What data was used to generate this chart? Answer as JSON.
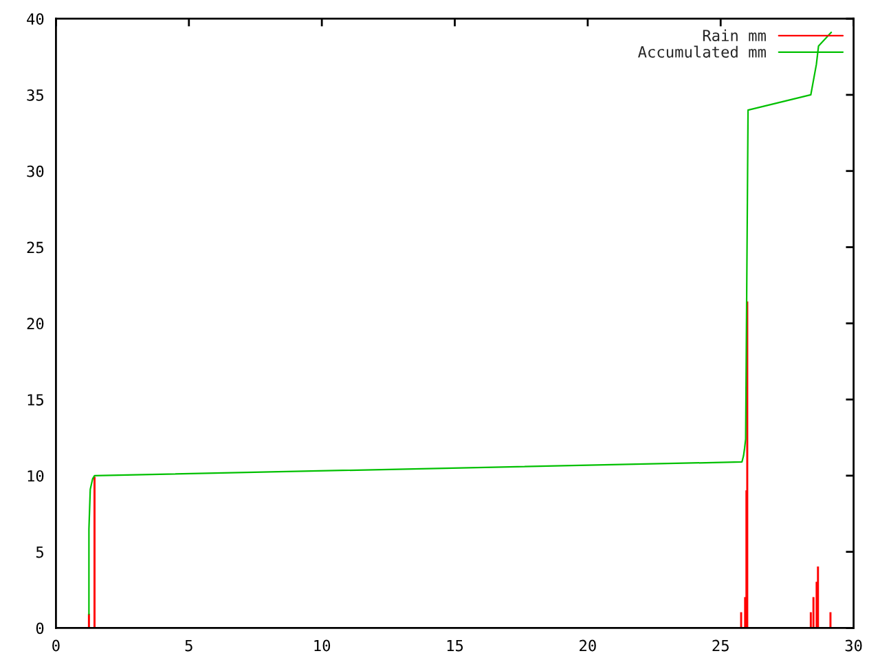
{
  "chart_data": {
    "type": "bar",
    "xlim": [
      0,
      30
    ],
    "ylim": [
      0,
      40
    ],
    "xticks": [
      0,
      5,
      10,
      15,
      20,
      25,
      30
    ],
    "yticks": [
      0,
      5,
      10,
      15,
      20,
      25,
      30,
      35,
      40
    ],
    "grid": false,
    "legend": "top right",
    "series": [
      {
        "name": "Rain mm",
        "color": "#ff0000",
        "x": [
          1.24,
          1.45,
          25.77,
          25.92,
          25.97,
          26.0,
          28.39,
          28.49,
          28.61,
          28.66,
          29.13
        ],
        "values": [
          0.9,
          9.9,
          1,
          2,
          9,
          21.4,
          1,
          2,
          3,
          4,
          1
        ]
      },
      {
        "name": "Accumulated mm",
        "type": "line",
        "color": "#00c000",
        "x": [
          1.24,
          1.24,
          1.29,
          1.38,
          1.45,
          25.8,
          25.86,
          25.9,
          25.94,
          26.03,
          28.39,
          28.6,
          28.68,
          29.16
        ],
        "values": [
          0.9,
          6.5,
          9.1,
          9.8,
          10.0,
          10.9,
          11.3,
          11.8,
          12.4,
          34.0,
          35.0,
          37.0,
          38.2,
          39.1
        ]
      }
    ]
  }
}
